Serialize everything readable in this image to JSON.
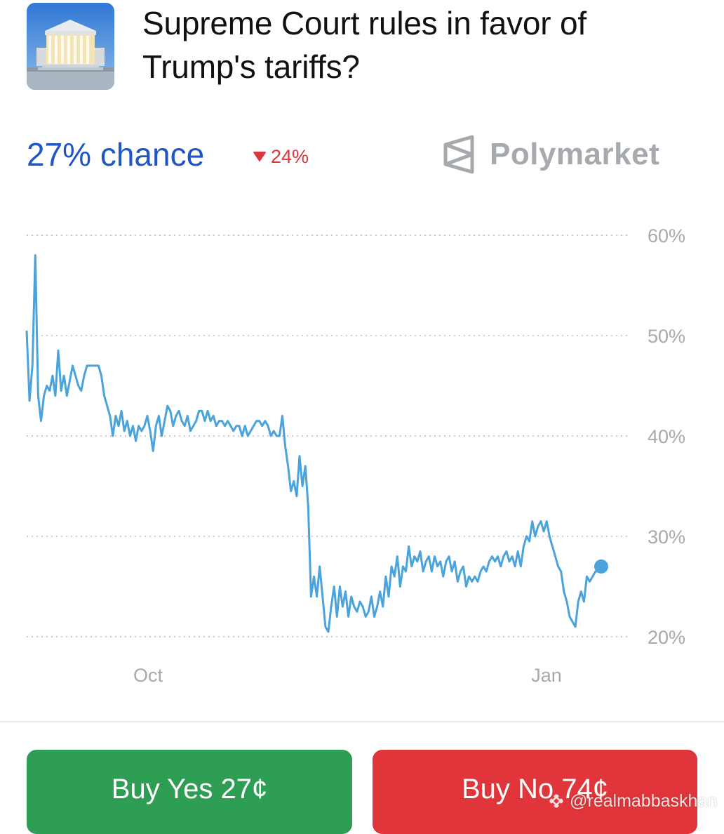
{
  "market": {
    "title": "Supreme Court rules in favor of Trump's tariffs?",
    "thumbnail_icon": "supreme-court-building-image"
  },
  "stats": {
    "chance_label": "27% chance",
    "change_label": "24%",
    "change_direction": "down",
    "brand_name": "Polymarket",
    "brand_icon": "polymarket-logo-icon"
  },
  "chart_data": {
    "type": "line",
    "ylim": [
      20,
      60
    ],
    "y_ticks": [
      "60%",
      "50%",
      "40%",
      "30%",
      "20%"
    ],
    "x_ticks": [
      "Oct",
      "Jan"
    ],
    "grid": true,
    "grid_style": "dotted",
    "line_color": "#4aa3db",
    "series": [
      {
        "values": [
          50.5,
          43.5,
          47,
          58,
          44,
          41.5,
          44,
          45,
          44.5,
          46,
          44,
          48.5,
          44.5,
          46,
          44,
          45.5,
          47,
          46,
          45,
          44.5,
          46,
          47,
          47,
          47,
          47,
          47,
          46,
          44,
          43,
          42,
          40,
          42,
          41,
          42.5,
          40.5,
          41.5,
          40,
          41,
          39.5,
          41,
          40.5,
          41,
          42,
          40.5,
          38.5,
          41,
          42,
          40,
          41.5,
          43,
          42.5,
          41,
          42,
          42.5,
          41.5,
          41,
          42,
          40.5,
          41,
          41.5,
          42.5,
          42.5,
          41.5,
          42.5,
          41.5,
          42,
          41,
          41.5,
          41.5,
          41,
          41.5,
          41,
          40.5,
          41,
          41,
          40,
          41,
          40,
          40.5,
          41,
          41.5,
          41.5,
          41,
          41.5,
          41,
          40,
          40.5,
          40,
          40,
          42,
          39,
          37,
          34.5,
          35.5,
          34,
          38,
          35,
          37,
          33,
          24,
          26,
          24,
          27,
          24,
          21,
          20.5,
          23,
          25,
          22,
          25,
          23,
          24.5,
          22,
          24,
          23,
          22.5,
          23.5,
          23,
          22,
          22.5,
          24,
          22,
          23,
          24.5,
          23,
          26,
          24,
          27,
          26,
          28,
          25,
          27,
          26.5,
          29,
          27,
          28,
          27.5,
          28.5,
          26.5,
          27.5,
          28,
          26.5,
          28,
          27,
          27.5,
          26,
          27.5,
          28,
          26.5,
          27.5,
          25.5,
          26.5,
          27,
          25,
          26,
          25.5,
          26,
          25.5,
          26.5,
          27,
          26.5,
          27.5,
          28,
          27.5,
          28,
          27,
          28,
          28.5,
          27.5,
          28,
          27,
          28.5,
          27,
          29,
          30,
          29.5,
          31.5,
          30,
          31,
          31.5,
          30.5,
          31.5,
          30,
          29,
          28,
          27,
          26.5,
          24.5,
          23.5,
          22,
          21.5,
          21,
          23.5,
          24.5,
          23.5,
          26,
          25.5,
          26,
          26.5,
          26.5,
          27
        ]
      }
    ]
  },
  "actions": {
    "buy_yes_label": "Buy Yes 27¢",
    "buy_no_label": "Buy No 74¢"
  },
  "watermark": {
    "icon": "binance-logo-icon",
    "text": "@realmabbaskhan"
  }
}
